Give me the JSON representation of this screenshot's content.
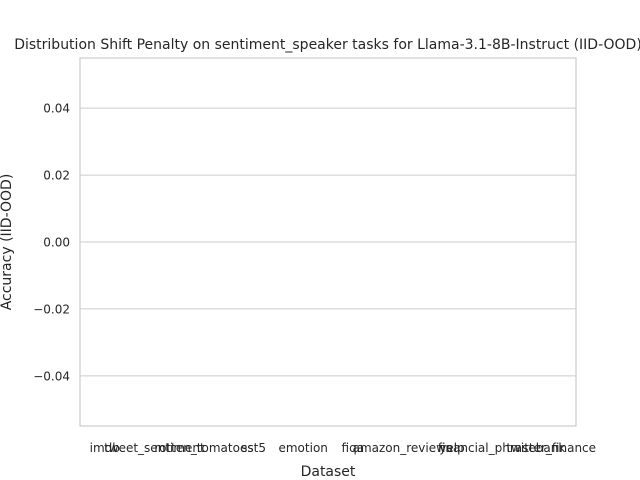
{
  "chart_data": {
    "type": "bar",
    "title": "Distribution Shift Penalty on sentiment_speaker tasks for Llama-3.1-8B-Instruct (IID-OOD)",
    "xlabel": "Dataset",
    "ylabel": "Accuracy (IID-OOD)",
    "categories": [
      "imdb",
      "tweet_sentiment",
      "rotten_tomatoes",
      "sst5",
      "emotion",
      "fiqa",
      "amazon_reviews",
      "yelp",
      "financial_phrasebank",
      "twitter_finance"
    ],
    "values": [
      0,
      0,
      0,
      0,
      0,
      0,
      0,
      0,
      0,
      0
    ],
    "ylim": [
      -0.055,
      0.055
    ],
    "yticks": [
      -0.04,
      -0.02,
      0.0,
      0.02,
      0.04
    ],
    "ytick_labels": [
      "−0.04",
      "−0.02",
      "0.00",
      "0.02",
      "0.04"
    ],
    "grid": "y",
    "legend": "none"
  }
}
